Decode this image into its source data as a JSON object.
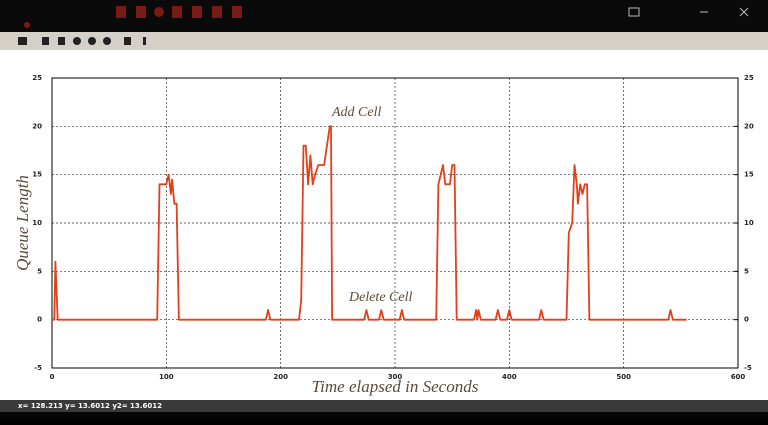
{
  "window": {
    "status": "x= 128.213 y= 13.6012 y2= 13.6012"
  },
  "chart_data": {
    "type": "line",
    "x": [
      0,
      2,
      3,
      5,
      92,
      94,
      100,
      102,
      104,
      105,
      107,
      109,
      111,
      187,
      189,
      191,
      216,
      218,
      220,
      222,
      224,
      226,
      228,
      230,
      233,
      238,
      243,
      244,
      245,
      273,
      275,
      277,
      286,
      288,
      290,
      304,
      306,
      308,
      336,
      338,
      342,
      344,
      348,
      350,
      352,
      354,
      369,
      371,
      372,
      373,
      375,
      388,
      390,
      392,
      398,
      400,
      402,
      426,
      428,
      430,
      450,
      452,
      455,
      457,
      459,
      460,
      462,
      464,
      466,
      468,
      470,
      539,
      541,
      543,
      555
    ],
    "values": [
      0,
      0,
      6,
      0,
      0,
      14,
      14,
      15,
      13,
      14.5,
      12,
      12,
      0,
      0,
      1,
      0,
      0,
      2,
      18,
      18,
      14,
      17,
      14,
      15,
      16,
      16,
      20,
      20,
      0,
      0,
      1,
      0,
      0,
      1,
      0,
      0,
      1,
      0,
      0,
      14,
      16,
      14,
      14,
      16,
      16,
      0,
      0,
      1,
      0,
      1,
      0,
      0,
      1,
      0,
      0,
      1,
      0,
      0,
      1,
      0,
      0,
      9,
      10,
      16,
      14,
      12,
      14,
      13,
      14,
      14,
      0,
      0,
      1,
      0,
      0
    ],
    "color": "#e0401a",
    "xlim": [
      0,
      600
    ],
    "xticks": [
      0,
      100,
      200,
      300,
      400,
      500,
      600
    ],
    "ylim": [
      -5,
      25
    ],
    "yticks": [
      -5,
      0,
      5,
      10,
      15,
      20,
      25
    ],
    "y2lim": [
      -5,
      25
    ],
    "y2ticks": [
      -5,
      0,
      5,
      10,
      15,
      20,
      25
    ],
    "grid": true,
    "xlabel": "Time elapsed in Seconds",
    "ylabel": "Queue Length",
    "annotations": [
      "Add Cell",
      "Delete Cell"
    ]
  }
}
